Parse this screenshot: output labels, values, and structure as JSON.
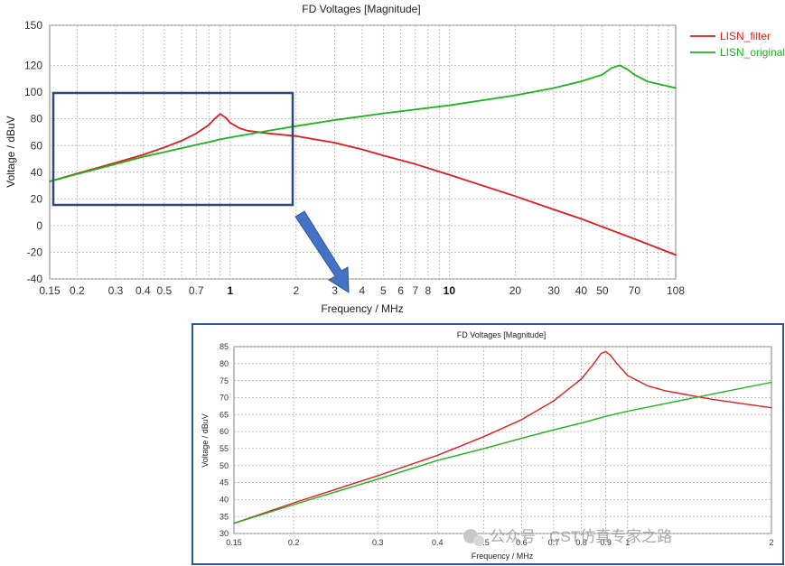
{
  "chart_data": [
    {
      "type": "line",
      "title": "FD Voltages [Magnitude]",
      "xlabel": "Frequency / MHz",
      "ylabel": "Voltage / dBuV",
      "xscale": "log",
      "xlim": [
        0.15,
        108
      ],
      "ylim": [
        -40,
        150
      ],
      "grid": true,
      "legend_position": "top-right",
      "x_ticks": [
        0.15,
        0.2,
        0.3,
        0.4,
        0.5,
        0.7,
        1,
        2,
        3,
        4,
        5,
        6,
        7,
        8,
        10,
        20,
        30,
        40,
        50,
        70,
        108
      ],
      "x_tick_labels": [
        "0.15",
        "0.2",
        "0.3",
        "0.4",
        "0.5",
        "0.7",
        "1",
        "2",
        "3",
        "4",
        "5",
        "6",
        "7",
        "8",
        "10",
        "20",
        "30",
        "40",
        "50",
        "70",
        "108"
      ],
      "y_ticks": [
        -40,
        -20,
        0,
        20,
        40,
        60,
        80,
        100,
        120,
        150
      ],
      "y_tick_labels": [
        "-40",
        "-20",
        "0",
        "20",
        "40",
        "60",
        "80",
        "100",
        "120",
        "150"
      ],
      "series": [
        {
          "name": "LISN_filter",
          "color": "#e31a1c",
          "points": [
            [
              0.15,
              33
            ],
            [
              0.2,
              39
            ],
            [
              0.3,
              47
            ],
            [
              0.4,
              53
            ],
            [
              0.5,
              58.5
            ],
            [
              0.6,
              63.5
            ],
            [
              0.7,
              69
            ],
            [
              0.8,
              75.5
            ],
            [
              0.85,
              80
            ],
            [
              0.9,
              83.5
            ],
            [
              0.95,
              81
            ],
            [
              1,
              77
            ],
            [
              1.1,
              73
            ],
            [
              1.2,
              71
            ],
            [
              1.5,
              69
            ],
            [
              2,
              67
            ],
            [
              3,
              62
            ],
            [
              4,
              57
            ],
            [
              5,
              52.5
            ],
            [
              7,
              46
            ],
            [
              10,
              38
            ],
            [
              20,
              22
            ],
            [
              30,
              12
            ],
            [
              40,
              5
            ],
            [
              50,
              -1
            ],
            [
              70,
              -10
            ],
            [
              108,
              -22
            ]
          ]
        },
        {
          "name": "LISN_original",
          "color": "#1db31d",
          "points": [
            [
              0.15,
              33
            ],
            [
              0.2,
              38.5
            ],
            [
              0.3,
              46
            ],
            [
              0.4,
              51.5
            ],
            [
              0.5,
              55
            ],
            [
              0.6,
              58
            ],
            [
              0.7,
              60.5
            ],
            [
              0.8,
              62.5
            ],
            [
              0.9,
              64.5
            ],
            [
              1,
              66
            ],
            [
              1.5,
              71
            ],
            [
              2,
              74.5
            ],
            [
              3,
              79
            ],
            [
              5,
              84
            ],
            [
              10,
              90
            ],
            [
              20,
              97.5
            ],
            [
              30,
              103
            ],
            [
              40,
              108
            ],
            [
              50,
              113
            ],
            [
              55,
              118
            ],
            [
              60,
              120
            ],
            [
              65,
              117
            ],
            [
              70,
              113
            ],
            [
              80,
              108
            ],
            [
              108,
              103
            ]
          ]
        }
      ]
    },
    {
      "type": "line",
      "title": "FD Voltages [Magnitude]",
      "xlabel": "Frequency / MHz",
      "ylabel": "Voltage / dBuV",
      "xscale": "log",
      "xlim": [
        0.15,
        2
      ],
      "ylim": [
        30,
        85
      ],
      "grid": true,
      "x_ticks": [
        0.15,
        0.2,
        0.3,
        0.4,
        0.5,
        0.6,
        0.7,
        0.8,
        0.9,
        1,
        2
      ],
      "x_tick_labels": [
        "0.15",
        "0.2",
        "0.3",
        "0.4",
        "0.5",
        "0.6",
        "0.7",
        "0.8",
        "0.9",
        "1",
        "2"
      ],
      "y_ticks": [
        30,
        35,
        40,
        45,
        50,
        55,
        60,
        65,
        70,
        75,
        80,
        85
      ],
      "y_tick_labels": [
        "30",
        "35",
        "40",
        "45",
        "50",
        "55",
        "60",
        "65",
        "70",
        "75",
        "80",
        "85"
      ],
      "series": [
        {
          "name": "LISN_filter",
          "color": "#e31a1c",
          "points": [
            [
              0.15,
              33
            ],
            [
              0.2,
              39
            ],
            [
              0.3,
              47
            ],
            [
              0.4,
              53
            ],
            [
              0.5,
              58.5
            ],
            [
              0.6,
              63.5
            ],
            [
              0.7,
              69
            ],
            [
              0.8,
              75.5
            ],
            [
              0.85,
              80
            ],
            [
              0.88,
              83
            ],
            [
              0.9,
              83.5
            ],
            [
              0.92,
              82.5
            ],
            [
              0.95,
              80
            ],
            [
              1,
              76.5
            ],
            [
              1.1,
              73.5
            ],
            [
              1.2,
              72
            ],
            [
              1.5,
              69.5
            ],
            [
              2,
              67
            ]
          ]
        },
        {
          "name": "LISN_original",
          "color": "#1db31d",
          "points": [
            [
              0.15,
              33
            ],
            [
              0.2,
              38.5
            ],
            [
              0.3,
              46
            ],
            [
              0.4,
              51.5
            ],
            [
              0.5,
              55
            ],
            [
              0.6,
              58
            ],
            [
              0.7,
              60.5
            ],
            [
              0.8,
              62.5
            ],
            [
              0.9,
              64.5
            ],
            [
              1,
              66
            ],
            [
              1.5,
              71
            ],
            [
              2,
              74.5
            ]
          ]
        }
      ]
    }
  ],
  "watermark": "公众号 · CST仿真专家之路"
}
